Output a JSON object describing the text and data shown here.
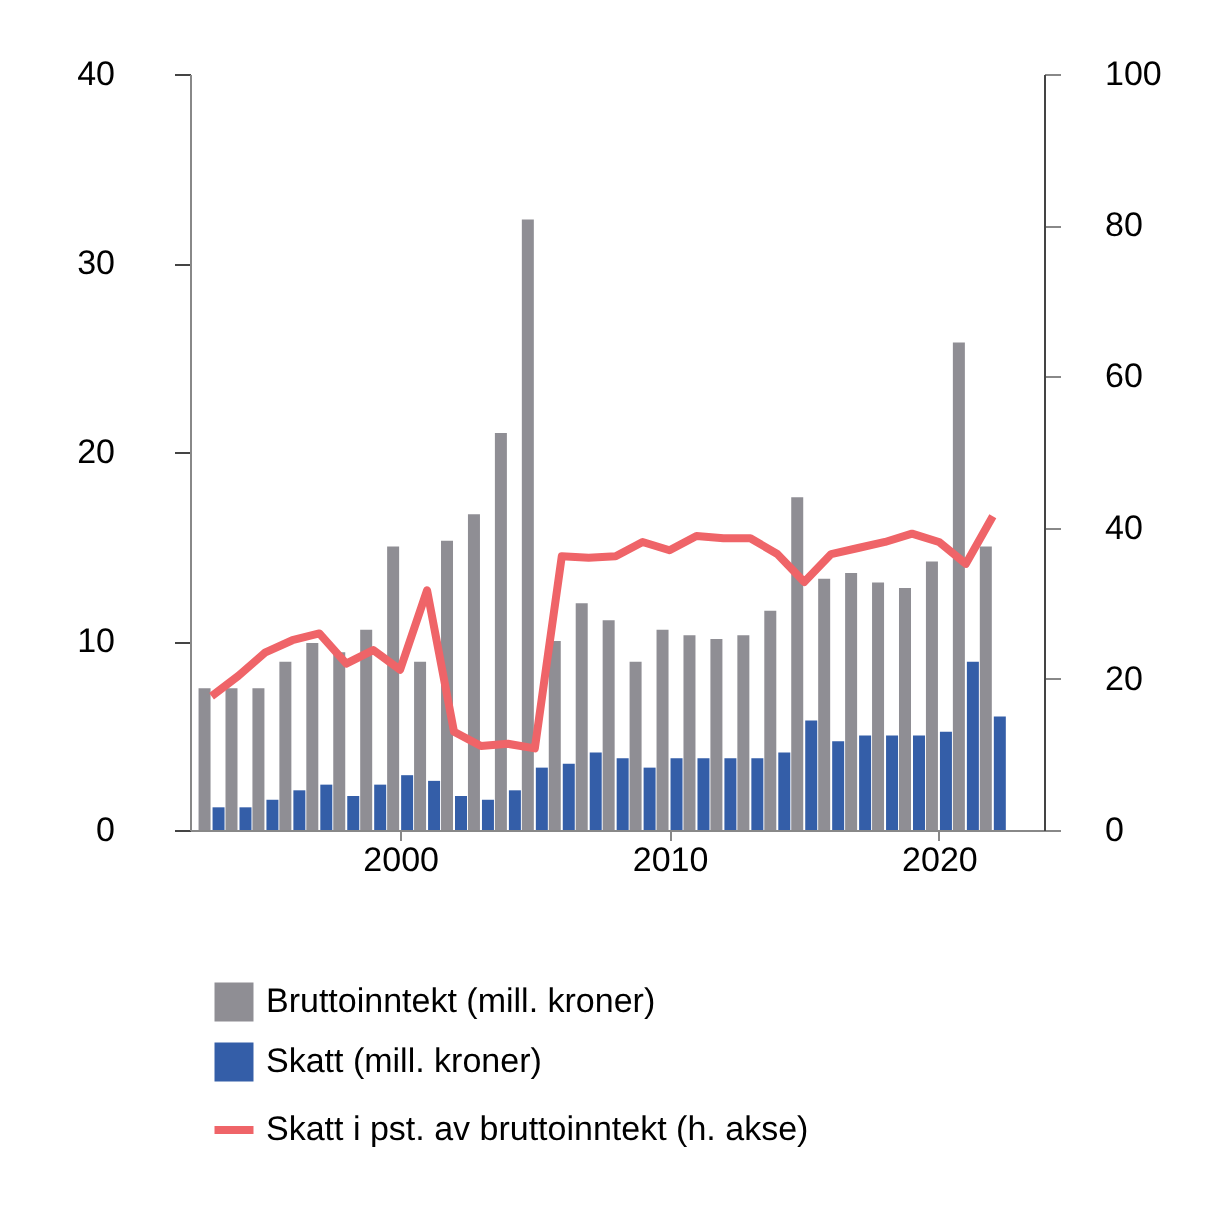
{
  "chart_data": {
    "type": "bar",
    "x": [
      1993,
      1994,
      1995,
      1996,
      1997,
      1998,
      1999,
      2000,
      2001,
      2002,
      2003,
      2004,
      2005,
      2006,
      2007,
      2008,
      2009,
      2010,
      2011,
      2012,
      2013,
      2014,
      2015,
      2016,
      2017,
      2018,
      2019,
      2020,
      2021,
      2022
    ],
    "series": [
      {
        "name": "Bruttoinntekt (mill. kroner)",
        "type": "bar",
        "color": "#8f8e94",
        "values": [
          7.5,
          7.5,
          7.5,
          8.9,
          9.9,
          9.4,
          10.6,
          15.0,
          8.9,
          15.3,
          16.7,
          21.0,
          32.3,
          10.0,
          12.0,
          11.1,
          8.9,
          10.6,
          10.3,
          10.1,
          10.3,
          11.6,
          17.6,
          13.3,
          13.6,
          13.1,
          12.8,
          14.2,
          25.8,
          15.0
        ]
      },
      {
        "name": "Skatt (mill. kroner)",
        "type": "bar",
        "color": "#345ea8",
        "values": [
          1.2,
          1.2,
          1.6,
          2.1,
          2.4,
          1.8,
          2.4,
          2.9,
          2.6,
          1.8,
          1.6,
          2.1,
          3.3,
          3.5,
          4.1,
          3.8,
          3.3,
          3.8,
          3.8,
          3.8,
          3.8,
          4.1,
          5.8,
          4.7,
          5.0,
          5.0,
          5.0,
          5.2,
          8.9,
          6.0
        ]
      },
      {
        "name": "Skatt i pst. av bruttoinntekt (h. akse)",
        "type": "line",
        "axis": "y2",
        "color": "#ef6468",
        "values": [
          17.7,
          20.4,
          23.5,
          25.1,
          26,
          22,
          23.8,
          21.2,
          31.7,
          13,
          11.1,
          11.4,
          10.8,
          36.2,
          36,
          36.2,
          38.1,
          37,
          38.9,
          38.6,
          38.6,
          36.5,
          32.8,
          36.5,
          37.3,
          38.1,
          39.2,
          38.1,
          35.2,
          41.5
        ]
      }
    ],
    "xlim": [
      1992.2,
      2023.9
    ],
    "xticks": [
      2000,
      2010,
      2020
    ],
    "ylim": [
      0,
      40
    ],
    "yticks": [
      0,
      10,
      20,
      30,
      40
    ],
    "y2lim": [
      0,
      100
    ],
    "y2ticks": [
      0,
      20,
      40,
      60,
      80,
      100
    ],
    "grid": false,
    "legend": "bottom",
    "line_style": "solid",
    "marker": "none"
  }
}
